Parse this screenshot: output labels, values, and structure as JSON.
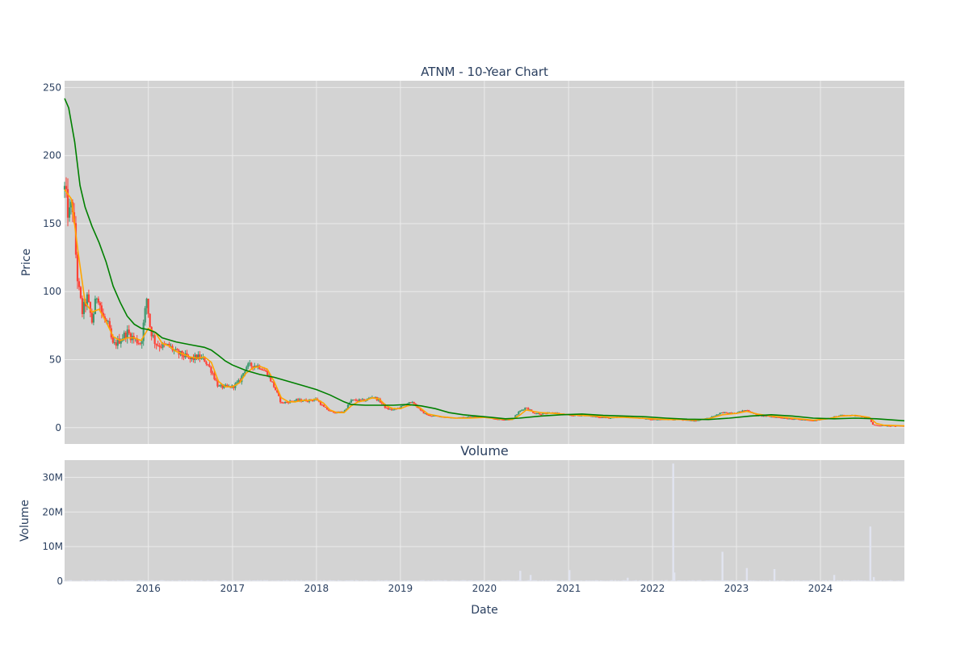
{
  "chart_data": [
    {
      "type": "line",
      "chart_subtype": "candlestick_with_moving_averages",
      "title": "ATNM - 10-Year Chart",
      "xlabel": "",
      "ylabel": "Price",
      "ylim": [
        -12,
        255
      ],
      "yticks": [
        0,
        50,
        100,
        150,
        200,
        250
      ],
      "xlim": [
        "2015-01-02",
        "2024-12-31"
      ],
      "x_tick_labels": [
        "2016",
        "2017",
        "2018",
        "2019",
        "2020",
        "2021",
        "2022",
        "2023",
        "2024"
      ],
      "grid": true,
      "legend": "none",
      "colors": {
        "background": "#d3d3d3",
        "grid": "#ebebeb",
        "increasing": "#3d9970",
        "decreasing": "#ff4136",
        "short_ma": "#ffa500",
        "long_ma": "#008000",
        "text": "#2a3f5f"
      },
      "price_path": [
        [
          "2015-01-02",
          175
        ],
        [
          "2015-01-20",
          155
        ],
        [
          "2015-02-05",
          165
        ],
        [
          "2015-02-15",
          140
        ],
        [
          "2015-03-01",
          105
        ],
        [
          "2015-03-20",
          85
        ],
        [
          "2015-04-10",
          95
        ],
        [
          "2015-05-01",
          78
        ],
        [
          "2015-05-25",
          100
        ],
        [
          "2015-06-15",
          82
        ],
        [
          "2015-07-10",
          75
        ],
        [
          "2015-08-01",
          60
        ],
        [
          "2015-09-01",
          65
        ],
        [
          "2015-10-01",
          70
        ],
        [
          "2015-11-01",
          65
        ],
        [
          "2015-12-01",
          62
        ],
        [
          "2015-12-25",
          95
        ],
        [
          "2016-01-10",
          72
        ],
        [
          "2016-02-01",
          62
        ],
        [
          "2016-03-01",
          60
        ],
        [
          "2016-04-01",
          60
        ],
        [
          "2016-05-01",
          55
        ],
        [
          "2016-06-01",
          53
        ],
        [
          "2016-07-01",
          50
        ],
        [
          "2016-08-01",
          52
        ],
        [
          "2016-09-01",
          50
        ],
        [
          "2016-10-01",
          42
        ],
        [
          "2016-11-01",
          30
        ],
        [
          "2016-12-01",
          30
        ],
        [
          "2017-01-01",
          30
        ],
        [
          "2017-02-01",
          34
        ],
        [
          "2017-03-01",
          45
        ],
        [
          "2017-04-01",
          46
        ],
        [
          "2017-05-01",
          45
        ],
        [
          "2017-06-01",
          40
        ],
        [
          "2017-07-01",
          30
        ],
        [
          "2017-08-01",
          18
        ],
        [
          "2017-09-01",
          19
        ],
        [
          "2017-10-01",
          20
        ],
        [
          "2017-11-01",
          20
        ],
        [
          "2017-12-01",
          20
        ],
        [
          "2018-01-01",
          21
        ],
        [
          "2018-02-01",
          15
        ],
        [
          "2018-03-01",
          12
        ],
        [
          "2018-04-01",
          11
        ],
        [
          "2018-05-01",
          12
        ],
        [
          "2018-06-01",
          20
        ],
        [
          "2018-07-01",
          20
        ],
        [
          "2018-08-01",
          20
        ],
        [
          "2018-09-01",
          23
        ],
        [
          "2018-10-01",
          20
        ],
        [
          "2018-11-01",
          14
        ],
        [
          "2018-12-01",
          13
        ],
        [
          "2019-01-01",
          15
        ],
        [
          "2019-02-01",
          18
        ],
        [
          "2019-03-01",
          18
        ],
        [
          "2019-04-01",
          12
        ],
        [
          "2019-05-01",
          9
        ],
        [
          "2019-07-01",
          8
        ],
        [
          "2019-09-01",
          7
        ],
        [
          "2019-11-01",
          8
        ],
        [
          "2020-01-01",
          8
        ],
        [
          "2020-03-01",
          6
        ],
        [
          "2020-05-01",
          6
        ],
        [
          "2020-06-01",
          12
        ],
        [
          "2020-07-01",
          15
        ],
        [
          "2020-08-01",
          11
        ],
        [
          "2020-09-01",
          10
        ],
        [
          "2020-11-01",
          11
        ],
        [
          "2021-01-01",
          9
        ],
        [
          "2021-03-01",
          9
        ],
        [
          "2021-05-01",
          8
        ],
        [
          "2021-07-01",
          7
        ],
        [
          "2021-09-01",
          8
        ],
        [
          "2021-11-01",
          7
        ],
        [
          "2022-01-01",
          6
        ],
        [
          "2022-03-01",
          6
        ],
        [
          "2022-05-01",
          6
        ],
        [
          "2022-07-01",
          5
        ],
        [
          "2022-09-01",
          7
        ],
        [
          "2022-11-01",
          11
        ],
        [
          "2023-01-01",
          11
        ],
        [
          "2023-02-15",
          13
        ],
        [
          "2023-04-01",
          9
        ],
        [
          "2023-06-01",
          8
        ],
        [
          "2023-08-01",
          7
        ],
        [
          "2023-10-01",
          6
        ],
        [
          "2023-12-01",
          5
        ],
        [
          "2024-02-01",
          7
        ],
        [
          "2024-04-01",
          9
        ],
        [
          "2024-06-01",
          9
        ],
        [
          "2024-08-01",
          7
        ],
        [
          "2024-08-15",
          2
        ],
        [
          "2024-10-01",
          1.5
        ],
        [
          "2024-12-31",
          1.2
        ]
      ],
      "short_ma": [
        [
          "2015-01-02",
          175
        ],
        [
          "2015-02-01",
          168
        ],
        [
          "2015-03-01",
          130
        ],
        [
          "2015-04-01",
          92
        ],
        [
          "2015-05-01",
          85
        ],
        [
          "2015-06-01",
          87
        ],
        [
          "2015-07-01",
          78
        ],
        [
          "2015-08-01",
          67
        ],
        [
          "2015-09-01",
          64
        ],
        [
          "2015-10-01",
          66
        ],
        [
          "2015-11-01",
          66
        ],
        [
          "2015-12-01",
          64
        ],
        [
          "2016-01-01",
          73
        ],
        [
          "2016-02-01",
          70
        ],
        [
          "2016-03-01",
          62
        ],
        [
          "2016-04-01",
          60
        ],
        [
          "2016-05-01",
          56
        ],
        [
          "2016-06-01",
          54
        ],
        [
          "2016-07-01",
          52
        ],
        [
          "2016-08-01",
          51
        ],
        [
          "2016-09-01",
          52
        ],
        [
          "2016-10-01",
          48
        ],
        [
          "2016-11-01",
          34
        ],
        [
          "2016-12-01",
          30
        ],
        [
          "2017-01-01",
          30
        ],
        [
          "2017-02-01",
          33
        ],
        [
          "2017-03-01",
          40
        ],
        [
          "2017-04-01",
          44
        ],
        [
          "2017-05-01",
          45
        ],
        [
          "2017-06-01",
          43
        ],
        [
          "2017-07-01",
          34
        ],
        [
          "2017-08-01",
          22
        ],
        [
          "2017-09-01",
          19
        ],
        [
          "2017-10-01",
          19
        ],
        [
          "2017-11-01",
          20
        ],
        [
          "2017-12-01",
          20
        ],
        [
          "2018-01-01",
          21
        ],
        [
          "2018-02-01",
          18
        ],
        [
          "2018-03-01",
          13
        ],
        [
          "2018-04-01",
          11
        ],
        [
          "2018-05-01",
          11
        ],
        [
          "2018-06-01",
          16
        ],
        [
          "2018-07-01",
          19
        ],
        [
          "2018-08-01",
          20
        ],
        [
          "2018-09-01",
          22
        ],
        [
          "2018-10-01",
          21
        ],
        [
          "2018-11-01",
          16
        ],
        [
          "2018-12-01",
          14
        ],
        [
          "2019-01-01",
          14
        ],
        [
          "2019-02-01",
          16
        ],
        [
          "2019-03-01",
          17
        ],
        [
          "2019-04-01",
          14
        ],
        [
          "2019-05-01",
          10
        ],
        [
          "2019-07-01",
          8
        ],
        [
          "2019-09-01",
          7
        ],
        [
          "2019-11-01",
          7
        ],
        [
          "2020-01-01",
          7.5
        ],
        [
          "2020-03-01",
          6.5
        ],
        [
          "2020-05-01",
          6
        ],
        [
          "2020-06-01",
          9
        ],
        [
          "2020-07-01",
          13
        ],
        [
          "2020-08-01",
          12
        ],
        [
          "2020-09-01",
          11
        ],
        [
          "2020-11-01",
          10.5
        ],
        [
          "2021-01-01",
          9.5
        ],
        [
          "2021-03-01",
          9
        ],
        [
          "2021-05-01",
          8.5
        ],
        [
          "2021-07-01",
          7.5
        ],
        [
          "2021-09-01",
          7.5
        ],
        [
          "2021-11-01",
          7
        ],
        [
          "2022-01-01",
          6.5
        ],
        [
          "2022-03-01",
          6
        ],
        [
          "2022-05-01",
          6
        ],
        [
          "2022-07-01",
          5.5
        ],
        [
          "2022-09-01",
          6.5
        ],
        [
          "2022-11-01",
          9.5
        ],
        [
          "2023-01-01",
          10.5
        ],
        [
          "2023-02-15",
          12
        ],
        [
          "2023-04-01",
          10
        ],
        [
          "2023-06-01",
          8.5
        ],
        [
          "2023-08-01",
          7.5
        ],
        [
          "2023-10-01",
          6.5
        ],
        [
          "2023-12-01",
          5.5
        ],
        [
          "2024-02-01",
          6.5
        ],
        [
          "2024-04-01",
          8.5
        ],
        [
          "2024-06-01",
          9
        ],
        [
          "2024-08-01",
          7.5
        ],
        [
          "2024-09-01",
          3
        ],
        [
          "2024-10-01",
          1.8
        ],
        [
          "2024-12-31",
          1.3
        ]
      ],
      "long_ma": [
        [
          "2015-01-02",
          242
        ],
        [
          "2015-01-20",
          235
        ],
        [
          "2015-02-15",
          210
        ],
        [
          "2015-03-10",
          178
        ],
        [
          "2015-04-01",
          162
        ],
        [
          "2015-05-01",
          148
        ],
        [
          "2015-06-01",
          136
        ],
        [
          "2015-07-01",
          122
        ],
        [
          "2015-08-01",
          104
        ],
        [
          "2015-09-01",
          92
        ],
        [
          "2015-10-01",
          82
        ],
        [
          "2015-11-01",
          76
        ],
        [
          "2015-12-01",
          73
        ],
        [
          "2016-01-01",
          72
        ],
        [
          "2016-02-01",
          70
        ],
        [
          "2016-03-01",
          66
        ],
        [
          "2016-05-01",
          63
        ],
        [
          "2016-07-01",
          61
        ],
        [
          "2016-09-01",
          59
        ],
        [
          "2016-10-01",
          57
        ],
        [
          "2016-11-01",
          53
        ],
        [
          "2016-12-01",
          49
        ],
        [
          "2017-01-01",
          46
        ],
        [
          "2017-03-01",
          42
        ],
        [
          "2017-05-01",
          39
        ],
        [
          "2017-07-01",
          37
        ],
        [
          "2017-09-01",
          34
        ],
        [
          "2017-11-01",
          31
        ],
        [
          "2018-01-01",
          28
        ],
        [
          "2018-03-01",
          24
        ],
        [
          "2018-05-01",
          19
        ],
        [
          "2018-06-01",
          17
        ],
        [
          "2018-08-01",
          16.5
        ],
        [
          "2018-10-01",
          16.5
        ],
        [
          "2018-12-01",
          16.5
        ],
        [
          "2019-02-01",
          17
        ],
        [
          "2019-04-01",
          16
        ],
        [
          "2019-06-01",
          14
        ],
        [
          "2019-08-01",
          11
        ],
        [
          "2019-10-01",
          9.5
        ],
        [
          "2019-12-01",
          8.5
        ],
        [
          "2020-02-01",
          7.5
        ],
        [
          "2020-04-01",
          6.5
        ],
        [
          "2020-06-01",
          7
        ],
        [
          "2020-09-01",
          8.5
        ],
        [
          "2020-12-01",
          9.5
        ],
        [
          "2021-03-01",
          10
        ],
        [
          "2021-06-01",
          9
        ],
        [
          "2021-09-01",
          8.5
        ],
        [
          "2021-12-01",
          8
        ],
        [
          "2022-03-01",
          7
        ],
        [
          "2022-06-01",
          6.2
        ],
        [
          "2022-09-01",
          6
        ],
        [
          "2022-12-01",
          7
        ],
        [
          "2023-03-01",
          8.5
        ],
        [
          "2023-06-01",
          9.5
        ],
        [
          "2023-09-01",
          8.5
        ],
        [
          "2023-12-01",
          7
        ],
        [
          "2024-03-01",
          6.5
        ],
        [
          "2024-06-01",
          7
        ],
        [
          "2024-09-01",
          6.5
        ],
        [
          "2024-12-31",
          5
        ]
      ]
    },
    {
      "type": "bar",
      "title": "Volume",
      "xlabel": "Date",
      "ylabel": "Volume",
      "ylim": [
        0,
        35000000
      ],
      "yticks": [
        0,
        10000000,
        20000000,
        30000000
      ],
      "ytick_labels": [
        "0",
        "10M",
        "20M",
        "30M"
      ],
      "x_tick_labels": [
        "2016",
        "2017",
        "2018",
        "2019",
        "2020",
        "2021",
        "2022",
        "2023",
        "2024"
      ],
      "grid": true,
      "bar_color": "#e1e4f0",
      "baseline_volume": 200000,
      "spikes": [
        [
          "2020-06-05",
          3000000
        ],
        [
          "2020-07-20",
          1800000
        ],
        [
          "2021-01-05",
          3200000
        ],
        [
          "2021-09-15",
          1000000
        ],
        [
          "2022-04-01",
          34000000
        ],
        [
          "2022-04-06",
          2500000
        ],
        [
          "2022-11-01",
          8500000
        ],
        [
          "2023-02-15",
          3800000
        ],
        [
          "2023-06-15",
          3500000
        ],
        [
          "2024-03-01",
          1800000
        ],
        [
          "2024-08-05",
          15800000
        ],
        [
          "2024-08-20",
          1200000
        ]
      ]
    }
  ]
}
